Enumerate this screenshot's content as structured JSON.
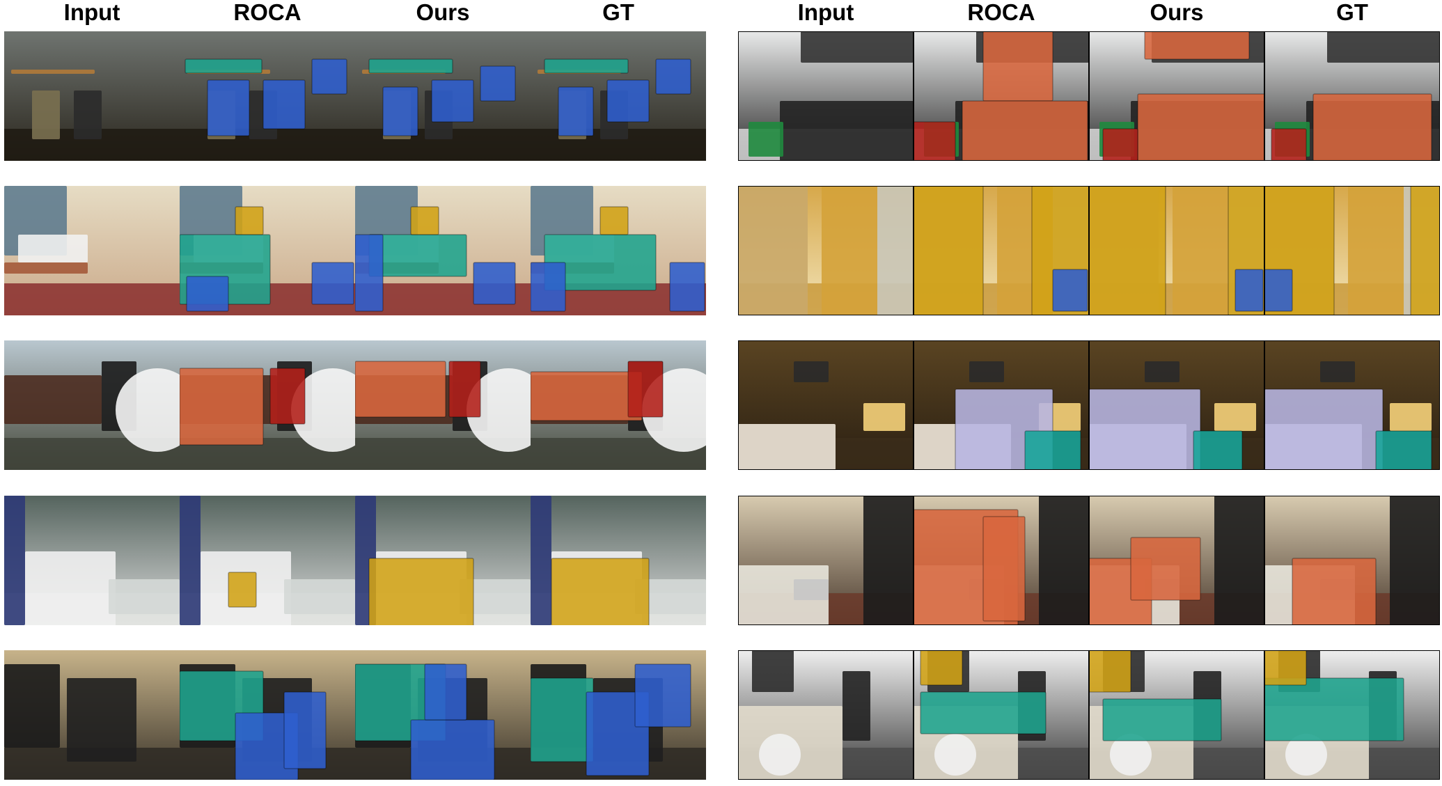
{
  "figure": {
    "left_panel": {
      "headers": [
        "Input",
        "ROCA",
        "Ours",
        "GT"
      ]
    },
    "right_panel": {
      "headers": [
        "Input",
        "ROCA",
        "Ours",
        "GT"
      ]
    }
  },
  "palette": {
    "table_teal": "#1fa58f",
    "chair_blue": "#2f5fcf",
    "cabinet_orange": "#d9673e",
    "bookshelf_yellow": "#d2a316",
    "bin_red": "#b4201a",
    "bed_lavender": "#b8b6e3",
    "nightstand_teal": "#17a59a"
  }
}
